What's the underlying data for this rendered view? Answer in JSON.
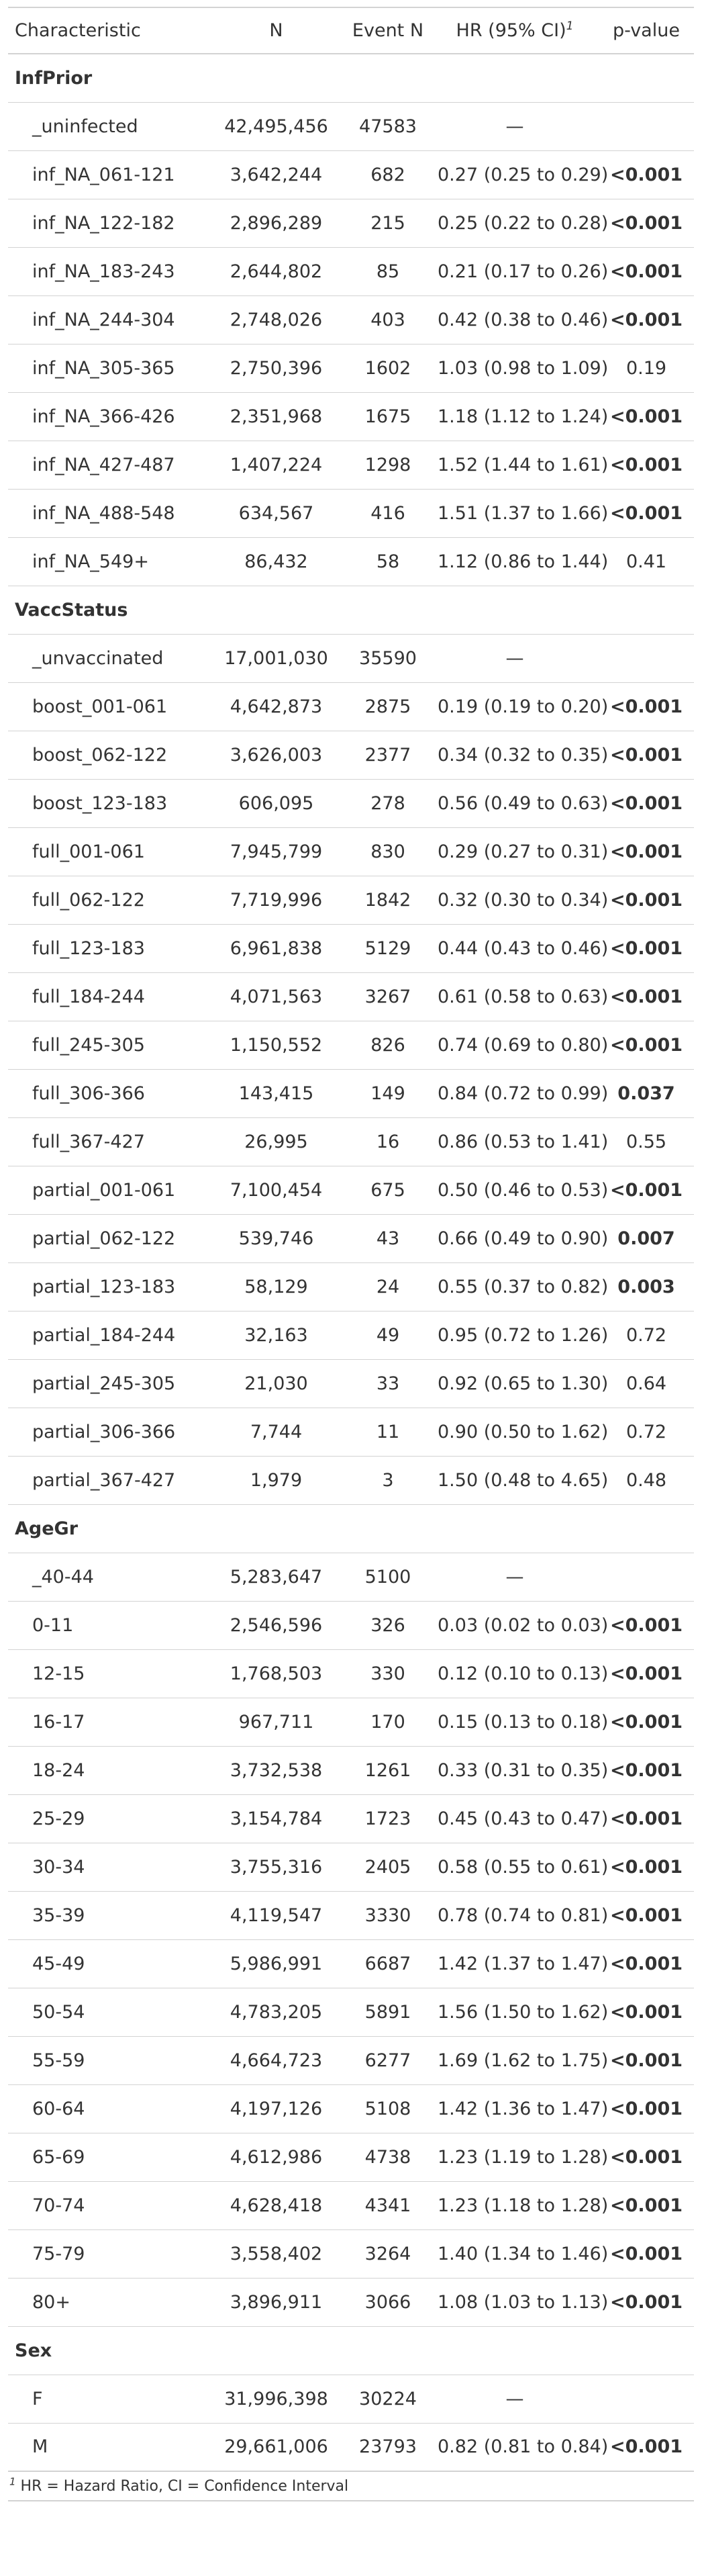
{
  "header": {
    "characteristic": "Characteristic",
    "n": "N",
    "event_n": "Event N",
    "hr": "HR (95% CI)",
    "hr_note": "1",
    "pvalue": "p-value"
  },
  "groups": [
    {
      "label": "InfPrior",
      "rows": [
        {
          "label": "_uninfected",
          "n": "42,495,456",
          "event_n": "47583",
          "hr": "—",
          "p": "",
          "sig": false
        },
        {
          "label": "inf_NA_061-121",
          "n": "3,642,244",
          "event_n": "682",
          "hr": "0.27 (0.25 to 0.29)",
          "p": "<0.001",
          "sig": true
        },
        {
          "label": "inf_NA_122-182",
          "n": "2,896,289",
          "event_n": "215",
          "hr": "0.25 (0.22 to 0.28)",
          "p": "<0.001",
          "sig": true
        },
        {
          "label": "inf_NA_183-243",
          "n": "2,644,802",
          "event_n": "85",
          "hr": "0.21 (0.17 to 0.26)",
          "p": "<0.001",
          "sig": true
        },
        {
          "label": "inf_NA_244-304",
          "n": "2,748,026",
          "event_n": "403",
          "hr": "0.42 (0.38 to 0.46)",
          "p": "<0.001",
          "sig": true
        },
        {
          "label": "inf_NA_305-365",
          "n": "2,750,396",
          "event_n": "1602",
          "hr": "1.03 (0.98 to 1.09)",
          "p": "0.19",
          "sig": false
        },
        {
          "label": "inf_NA_366-426",
          "n": "2,351,968",
          "event_n": "1675",
          "hr": "1.18 (1.12 to 1.24)",
          "p": "<0.001",
          "sig": true
        },
        {
          "label": "inf_NA_427-487",
          "n": "1,407,224",
          "event_n": "1298",
          "hr": "1.52 (1.44 to 1.61)",
          "p": "<0.001",
          "sig": true
        },
        {
          "label": "inf_NA_488-548",
          "n": "634,567",
          "event_n": "416",
          "hr": "1.51 (1.37 to 1.66)",
          "p": "<0.001",
          "sig": true
        },
        {
          "label": "inf_NA_549+",
          "n": "86,432",
          "event_n": "58",
          "hr": "1.12 (0.86 to 1.44)",
          "p": "0.41",
          "sig": false
        }
      ]
    },
    {
      "label": "VaccStatus",
      "rows": [
        {
          "label": "_unvaccinated",
          "n": "17,001,030",
          "event_n": "35590",
          "hr": "—",
          "p": "",
          "sig": false
        },
        {
          "label": "boost_001-061",
          "n": "4,642,873",
          "event_n": "2875",
          "hr": "0.19 (0.19 to 0.20)",
          "p": "<0.001",
          "sig": true
        },
        {
          "label": "boost_062-122",
          "n": "3,626,003",
          "event_n": "2377",
          "hr": "0.34 (0.32 to 0.35)",
          "p": "<0.001",
          "sig": true
        },
        {
          "label": "boost_123-183",
          "n": "606,095",
          "event_n": "278",
          "hr": "0.56 (0.49 to 0.63)",
          "p": "<0.001",
          "sig": true
        },
        {
          "label": "full_001-061",
          "n": "7,945,799",
          "event_n": "830",
          "hr": "0.29 (0.27 to 0.31)",
          "p": "<0.001",
          "sig": true
        },
        {
          "label": "full_062-122",
          "n": "7,719,996",
          "event_n": "1842",
          "hr": "0.32 (0.30 to 0.34)",
          "p": "<0.001",
          "sig": true
        },
        {
          "label": "full_123-183",
          "n": "6,961,838",
          "event_n": "5129",
          "hr": "0.44 (0.43 to 0.46)",
          "p": "<0.001",
          "sig": true
        },
        {
          "label": "full_184-244",
          "n": "4,071,563",
          "event_n": "3267",
          "hr": "0.61 (0.58 to 0.63)",
          "p": "<0.001",
          "sig": true
        },
        {
          "label": "full_245-305",
          "n": "1,150,552",
          "event_n": "826",
          "hr": "0.74 (0.69 to 0.80)",
          "p": "<0.001",
          "sig": true
        },
        {
          "label": "full_306-366",
          "n": "143,415",
          "event_n": "149",
          "hr": "0.84 (0.72 to 0.99)",
          "p": "0.037",
          "sig": true
        },
        {
          "label": "full_367-427",
          "n": "26,995",
          "event_n": "16",
          "hr": "0.86 (0.53 to 1.41)",
          "p": "0.55",
          "sig": false
        },
        {
          "label": "partial_001-061",
          "n": "7,100,454",
          "event_n": "675",
          "hr": "0.50 (0.46 to 0.53)",
          "p": "<0.001",
          "sig": true
        },
        {
          "label": "partial_062-122",
          "n": "539,746",
          "event_n": "43",
          "hr": "0.66 (0.49 to 0.90)",
          "p": "0.007",
          "sig": true
        },
        {
          "label": "partial_123-183",
          "n": "58,129",
          "event_n": "24",
          "hr": "0.55 (0.37 to 0.82)",
          "p": "0.003",
          "sig": true
        },
        {
          "label": "partial_184-244",
          "n": "32,163",
          "event_n": "49",
          "hr": "0.95 (0.72 to 1.26)",
          "p": "0.72",
          "sig": false
        },
        {
          "label": "partial_245-305",
          "n": "21,030",
          "event_n": "33",
          "hr": "0.92 (0.65 to 1.30)",
          "p": "0.64",
          "sig": false
        },
        {
          "label": "partial_306-366",
          "n": "7,744",
          "event_n": "11",
          "hr": "0.90 (0.50 to 1.62)",
          "p": "0.72",
          "sig": false
        },
        {
          "label": "partial_367-427",
          "n": "1,979",
          "event_n": "3",
          "hr": "1.50 (0.48 to 4.65)",
          "p": "0.48",
          "sig": false
        }
      ]
    },
    {
      "label": "AgeGr",
      "rows": [
        {
          "label": "_40-44",
          "n": "5,283,647",
          "event_n": "5100",
          "hr": "—",
          "p": "",
          "sig": false
        },
        {
          "label": "0-11",
          "n": "2,546,596",
          "event_n": "326",
          "hr": "0.03 (0.02 to 0.03)",
          "p": "<0.001",
          "sig": true
        },
        {
          "label": "12-15",
          "n": "1,768,503",
          "event_n": "330",
          "hr": "0.12 (0.10 to 0.13)",
          "p": "<0.001",
          "sig": true
        },
        {
          "label": "16-17",
          "n": "967,711",
          "event_n": "170",
          "hr": "0.15 (0.13 to 0.18)",
          "p": "<0.001",
          "sig": true
        },
        {
          "label": "18-24",
          "n": "3,732,538",
          "event_n": "1261",
          "hr": "0.33 (0.31 to 0.35)",
          "p": "<0.001",
          "sig": true
        },
        {
          "label": "25-29",
          "n": "3,154,784",
          "event_n": "1723",
          "hr": "0.45 (0.43 to 0.47)",
          "p": "<0.001",
          "sig": true
        },
        {
          "label": "30-34",
          "n": "3,755,316",
          "event_n": "2405",
          "hr": "0.58 (0.55 to 0.61)",
          "p": "<0.001",
          "sig": true
        },
        {
          "label": "35-39",
          "n": "4,119,547",
          "event_n": "3330",
          "hr": "0.78 (0.74 to 0.81)",
          "p": "<0.001",
          "sig": true
        },
        {
          "label": "45-49",
          "n": "5,986,991",
          "event_n": "6687",
          "hr": "1.42 (1.37 to 1.47)",
          "p": "<0.001",
          "sig": true
        },
        {
          "label": "50-54",
          "n": "4,783,205",
          "event_n": "5891",
          "hr": "1.56 (1.50 to 1.62)",
          "p": "<0.001",
          "sig": true
        },
        {
          "label": "55-59",
          "n": "4,664,723",
          "event_n": "6277",
          "hr": "1.69 (1.62 to 1.75)",
          "p": "<0.001",
          "sig": true
        },
        {
          "label": "60-64",
          "n": "4,197,126",
          "event_n": "5108",
          "hr": "1.42 (1.36 to 1.47)",
          "p": "<0.001",
          "sig": true
        },
        {
          "label": "65-69",
          "n": "4,612,986",
          "event_n": "4738",
          "hr": "1.23 (1.19 to 1.28)",
          "p": "<0.001",
          "sig": true
        },
        {
          "label": "70-74",
          "n": "4,628,418",
          "event_n": "4341",
          "hr": "1.23 (1.18 to 1.28)",
          "p": "<0.001",
          "sig": true
        },
        {
          "label": "75-79",
          "n": "3,558,402",
          "event_n": "3264",
          "hr": "1.40 (1.34 to 1.46)",
          "p": "<0.001",
          "sig": true
        },
        {
          "label": "80+",
          "n": "3,896,911",
          "event_n": "3066",
          "hr": "1.08 (1.03 to 1.13)",
          "p": "<0.001",
          "sig": true
        }
      ]
    },
    {
      "label": "Sex",
      "rows": [
        {
          "label": "F",
          "n": "31,996,398",
          "event_n": "30224",
          "hr": "—",
          "p": "",
          "sig": false
        },
        {
          "label": "M",
          "n": "29,661,006",
          "event_n": "23793",
          "hr": "0.82 (0.81 to 0.84)",
          "p": "<0.001",
          "sig": true
        }
      ]
    }
  ],
  "footnote": {
    "mark": "1",
    "text": " HR = Hazard Ratio, CI = Confidence Interval"
  }
}
